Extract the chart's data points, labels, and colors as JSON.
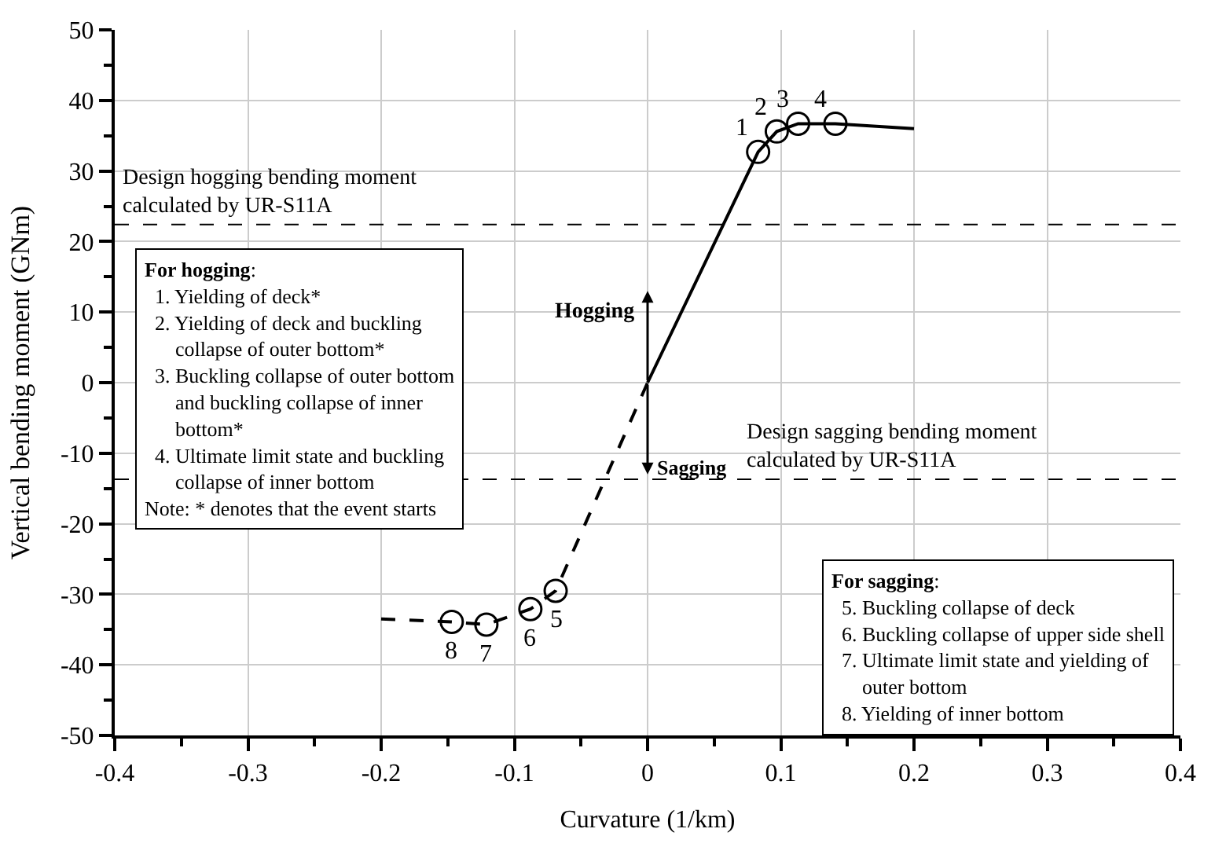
{
  "chart_data": {
    "type": "line",
    "xlabel": "Curvature (1/km)",
    "ylabel": "Vertical bending moment (GNm)",
    "xlim": [
      -0.4,
      0.4
    ],
    "ylim": [
      -50,
      50
    ],
    "xticks": [
      -0.4,
      {
        "value": -0.35,
        "label": null
      },
      -0.3,
      {
        "value": -0.25,
        "label": null
      },
      -0.2,
      {
        "value": -0.15,
        "label": null
      },
      -0.1,
      {
        "value": -0.05,
        "label": null
      },
      0,
      {
        "value": 0.05,
        "label": null
      },
      0.1,
      {
        "value": 0.15,
        "label": null
      },
      0.2,
      {
        "value": 0.25,
        "label": null
      },
      0.3,
      {
        "value": 0.35,
        "label": null
      },
      0.4
    ],
    "yticks": [
      -50,
      {
        "value": -45,
        "label": null
      },
      -40,
      {
        "value": -35,
        "label": null
      },
      -30,
      {
        "value": -25,
        "label": null
      },
      -20,
      {
        "value": -15,
        "label": null
      },
      -10,
      {
        "value": -5,
        "label": null
      },
      0,
      {
        "value": 5,
        "label": null
      },
      10,
      {
        "value": 15,
        "label": null
      },
      20,
      {
        "value": 25,
        "label": null
      },
      30,
      {
        "value": 35,
        "label": null
      },
      40,
      {
        "value": 45,
        "label": null
      },
      50
    ],
    "grid": true,
    "series": [
      {
        "color": "#000000",
        "line_style": "solid",
        "marker": "none",
        "x": [
          0,
          0.083,
          0.097,
          0.113,
          0.141,
          0.2
        ],
        "values": [
          0,
          32.7,
          35.6,
          36.7,
          36.7,
          36.0
        ]
      },
      {
        "color": "#000000",
        "line_style": "dashed",
        "marker": "none",
        "x": [
          -0.2,
          -0.147,
          -0.121,
          -0.088,
          -0.069,
          0
        ],
        "values": [
          -33.5,
          -33.9,
          -34.3,
          -32.1,
          -29.5,
          0
        ]
      },
      {
        "type": "scatter",
        "color": "#000000",
        "marker": "circle",
        "x": [
          0.083,
          0.097,
          0.113,
          0.141
        ],
        "values": [
          32.7,
          35.6,
          36.7,
          36.7
        ]
      },
      {
        "type": "scatter",
        "color": "#000000",
        "marker": "circle",
        "x": [
          -0.069,
          -0.088,
          -0.121,
          -0.147
        ],
        "values": [
          -29.5,
          -32.1,
          -34.3,
          -33.9
        ]
      }
    ],
    "ref_lines": [
      {
        "axis": "y",
        "value": 22.4,
        "label": "Design hogging bending moment\ncalculated by UR-S11A",
        "color": "#000000",
        "line_style": "dashed"
      },
      {
        "axis": "y",
        "value": -13.7,
        "label": "Design sagging bending moment\ncalculated by UR-S11A",
        "color": "#000000",
        "line_style": "dashed"
      }
    ],
    "annotations": [
      "Hogging",
      "Sagging",
      {
        "text": "1",
        "x": 0.083,
        "y": 32.7
      },
      {
        "text": "2",
        "x": 0.097,
        "y": 35.6
      },
      {
        "text": "3",
        "x": 0.113,
        "y": 36.7
      },
      {
        "text": "4",
        "x": 0.141,
        "y": 36.7
      },
      {
        "text": "5",
        "x": -0.069,
        "y": -29.5
      },
      {
        "text": "6",
        "x": -0.088,
        "y": -32.1
      },
      {
        "text": "7",
        "x": -0.121,
        "y": -34.3
      },
      {
        "text": "8",
        "x": -0.147,
        "y": -33.9
      },
      "For hogging:\n  1. Yielding of deck*\n  2. Yielding of deck and buckling\n      collapse of outer bottom*\n  3. Buckling collapse of outer bottom\n      and buckling collapse of inner\n      bottom*\n  4. Ultimate limit state and buckling\n      collapse of inner bottom\nNote: * denotes that the event starts",
      "For sagging:\n  5. Buckling collapse of deck\n  6. Buckling collapse of upper side shell\n  7. Ultimate limit state and yielding of\n      outer bottom\n  8. Yielding of inner bottom"
    ]
  }
}
